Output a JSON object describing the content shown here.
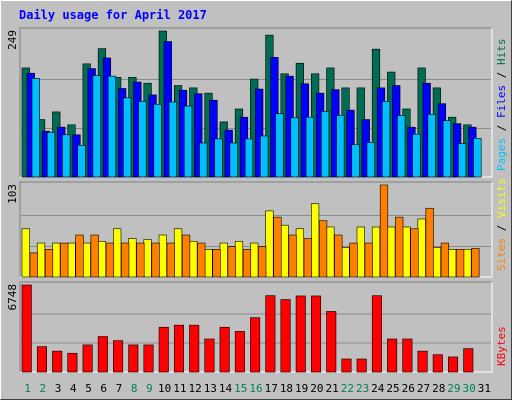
{
  "title": "Daily usage for April 2017",
  "colors": {
    "background": "#c0c0c0",
    "frame": "#e0e0e0",
    "title": "#0000ff",
    "hits": "#006c54",
    "files": "#0000ff",
    "pages": "#00c0ff",
    "visits": "#ffff00",
    "sites": "#ff8000",
    "kbytes": "#ff0000",
    "weekend_day_label": "#00805c",
    "weekday_day_label": "#000000"
  },
  "chart_data": [
    {
      "type": "bar",
      "name": "hits-files-pages",
      "y_max_label": "249",
      "right_label": [
        {
          "text": "Pages",
          "color": "#00c0ff"
        },
        {
          "text": " / ",
          "color": "#000000"
        },
        {
          "text": "Files",
          "color": "#0000ff"
        },
        {
          "text": " / ",
          "color": "#000000"
        },
        {
          "text": "Hits",
          "color": "#006c54"
        }
      ],
      "ylim": [
        0,
        249
      ],
      "categories": [
        "1",
        "2",
        "3",
        "4",
        "5",
        "6",
        "7",
        "8",
        "9",
        "10",
        "11",
        "12",
        "13",
        "14",
        "15",
        "16",
        "17",
        "18",
        "19",
        "20",
        "21",
        "22",
        "23",
        "24",
        "25",
        "26",
        "27",
        "28",
        "29",
        "30",
        "31"
      ],
      "series": [
        {
          "name": "Hits",
          "values": [
            186,
            98,
            111,
            89,
            193,
            219,
            170,
            170,
            160,
            249,
            156,
            152,
            143,
            94,
            116,
            167,
            242,
            176,
            194,
            176,
            186,
            152,
            152,
            218,
            179,
            116,
            186,
            152,
            102,
            89,
            0
          ]
        },
        {
          "name": "Files",
          "values": [
            177,
            78,
            85,
            72,
            185,
            203,
            151,
            162,
            140,
            231,
            148,
            142,
            131,
            80,
            102,
            150,
            204,
            172,
            159,
            143,
            149,
            114,
            98,
            152,
            156,
            85,
            160,
            125,
            91,
            85,
            0
          ]
        },
        {
          "name": "Pages",
          "values": [
            168,
            76,
            72,
            54,
            173,
            172,
            135,
            129,
            124,
            128,
            121,
            58,
            65,
            58,
            65,
            70,
            108,
            101,
            102,
            112,
            105,
            55,
            59,
            129,
            105,
            73,
            107,
            96,
            57,
            66,
            0
          ]
        }
      ]
    },
    {
      "type": "bar",
      "name": "visits-sites",
      "y_max_label": "103",
      "right_label": [
        {
          "text": "Sites",
          "color": "#ff8000"
        },
        {
          "text": " / ",
          "color": "#000000"
        },
        {
          "text": "Visits",
          "color": "#ffff00"
        }
      ],
      "ylim": [
        0,
        103
      ],
      "categories": [
        "1",
        "2",
        "3",
        "4",
        "5",
        "6",
        "7",
        "8",
        "9",
        "10",
        "11",
        "12",
        "13",
        "14",
        "15",
        "16",
        "17",
        "18",
        "19",
        "20",
        "21",
        "22",
        "23",
        "24",
        "25",
        "26",
        "27",
        "28",
        "29",
        "30",
        "31"
      ],
      "series": [
        {
          "name": "Visits",
          "values": [
            54,
            38,
            38,
            38,
            38,
            40,
            54,
            43,
            42,
            47,
            54,
            40,
            31,
            38,
            40,
            38,
            74,
            58,
            54,
            82,
            56,
            33,
            56,
            56,
            56,
            56,
            65,
            33,
            31,
            31,
            0
          ]
        },
        {
          "name": "Sites",
          "values": [
            27,
            31,
            38,
            47,
            47,
            38,
            38,
            38,
            38,
            38,
            47,
            38,
            31,
            34,
            31,
            34,
            67,
            47,
            43,
            63,
            47,
            38,
            38,
            103,
            67,
            54,
            77,
            38,
            31,
            32,
            0
          ]
        }
      ]
    },
    {
      "type": "bar",
      "name": "kbytes",
      "y_max_label": "6748",
      "right_label": [
        {
          "text": "KBytes",
          "color": "#ff0000"
        }
      ],
      "ylim": [
        0,
        6748
      ],
      "categories": [
        "1",
        "2",
        "3",
        "4",
        "5",
        "6",
        "7",
        "8",
        "9",
        "10",
        "11",
        "12",
        "13",
        "14",
        "15",
        "16",
        "17",
        "18",
        "19",
        "20",
        "21",
        "22",
        "23",
        "24",
        "25",
        "26",
        "27",
        "28",
        "29",
        "30",
        "31"
      ],
      "series": [
        {
          "name": "KBytes",
          "values": [
            6748,
            1967,
            1619,
            1456,
            2100,
            2752,
            2432,
            2100,
            2100,
            3473,
            3633,
            3633,
            2560,
            3473,
            3146,
            4214,
            5921,
            5620,
            5899,
            5899,
            4696,
            1007,
            1007,
            5920,
            2560,
            2560,
            1619,
            1343,
            1168,
            1813,
            0
          ]
        }
      ]
    }
  ],
  "x_axis": {
    "labels": [
      "1",
      "2",
      "3",
      "4",
      "5",
      "6",
      "7",
      "8",
      "9",
      "10",
      "11",
      "12",
      "13",
      "14",
      "15",
      "16",
      "17",
      "18",
      "19",
      "20",
      "21",
      "22",
      "23",
      "24",
      "25",
      "26",
      "27",
      "28",
      "29",
      "30",
      "31"
    ],
    "weekend_days": [
      "1",
      "2",
      "8",
      "9",
      "15",
      "16",
      "22",
      "23",
      "29",
      "30"
    ]
  }
}
